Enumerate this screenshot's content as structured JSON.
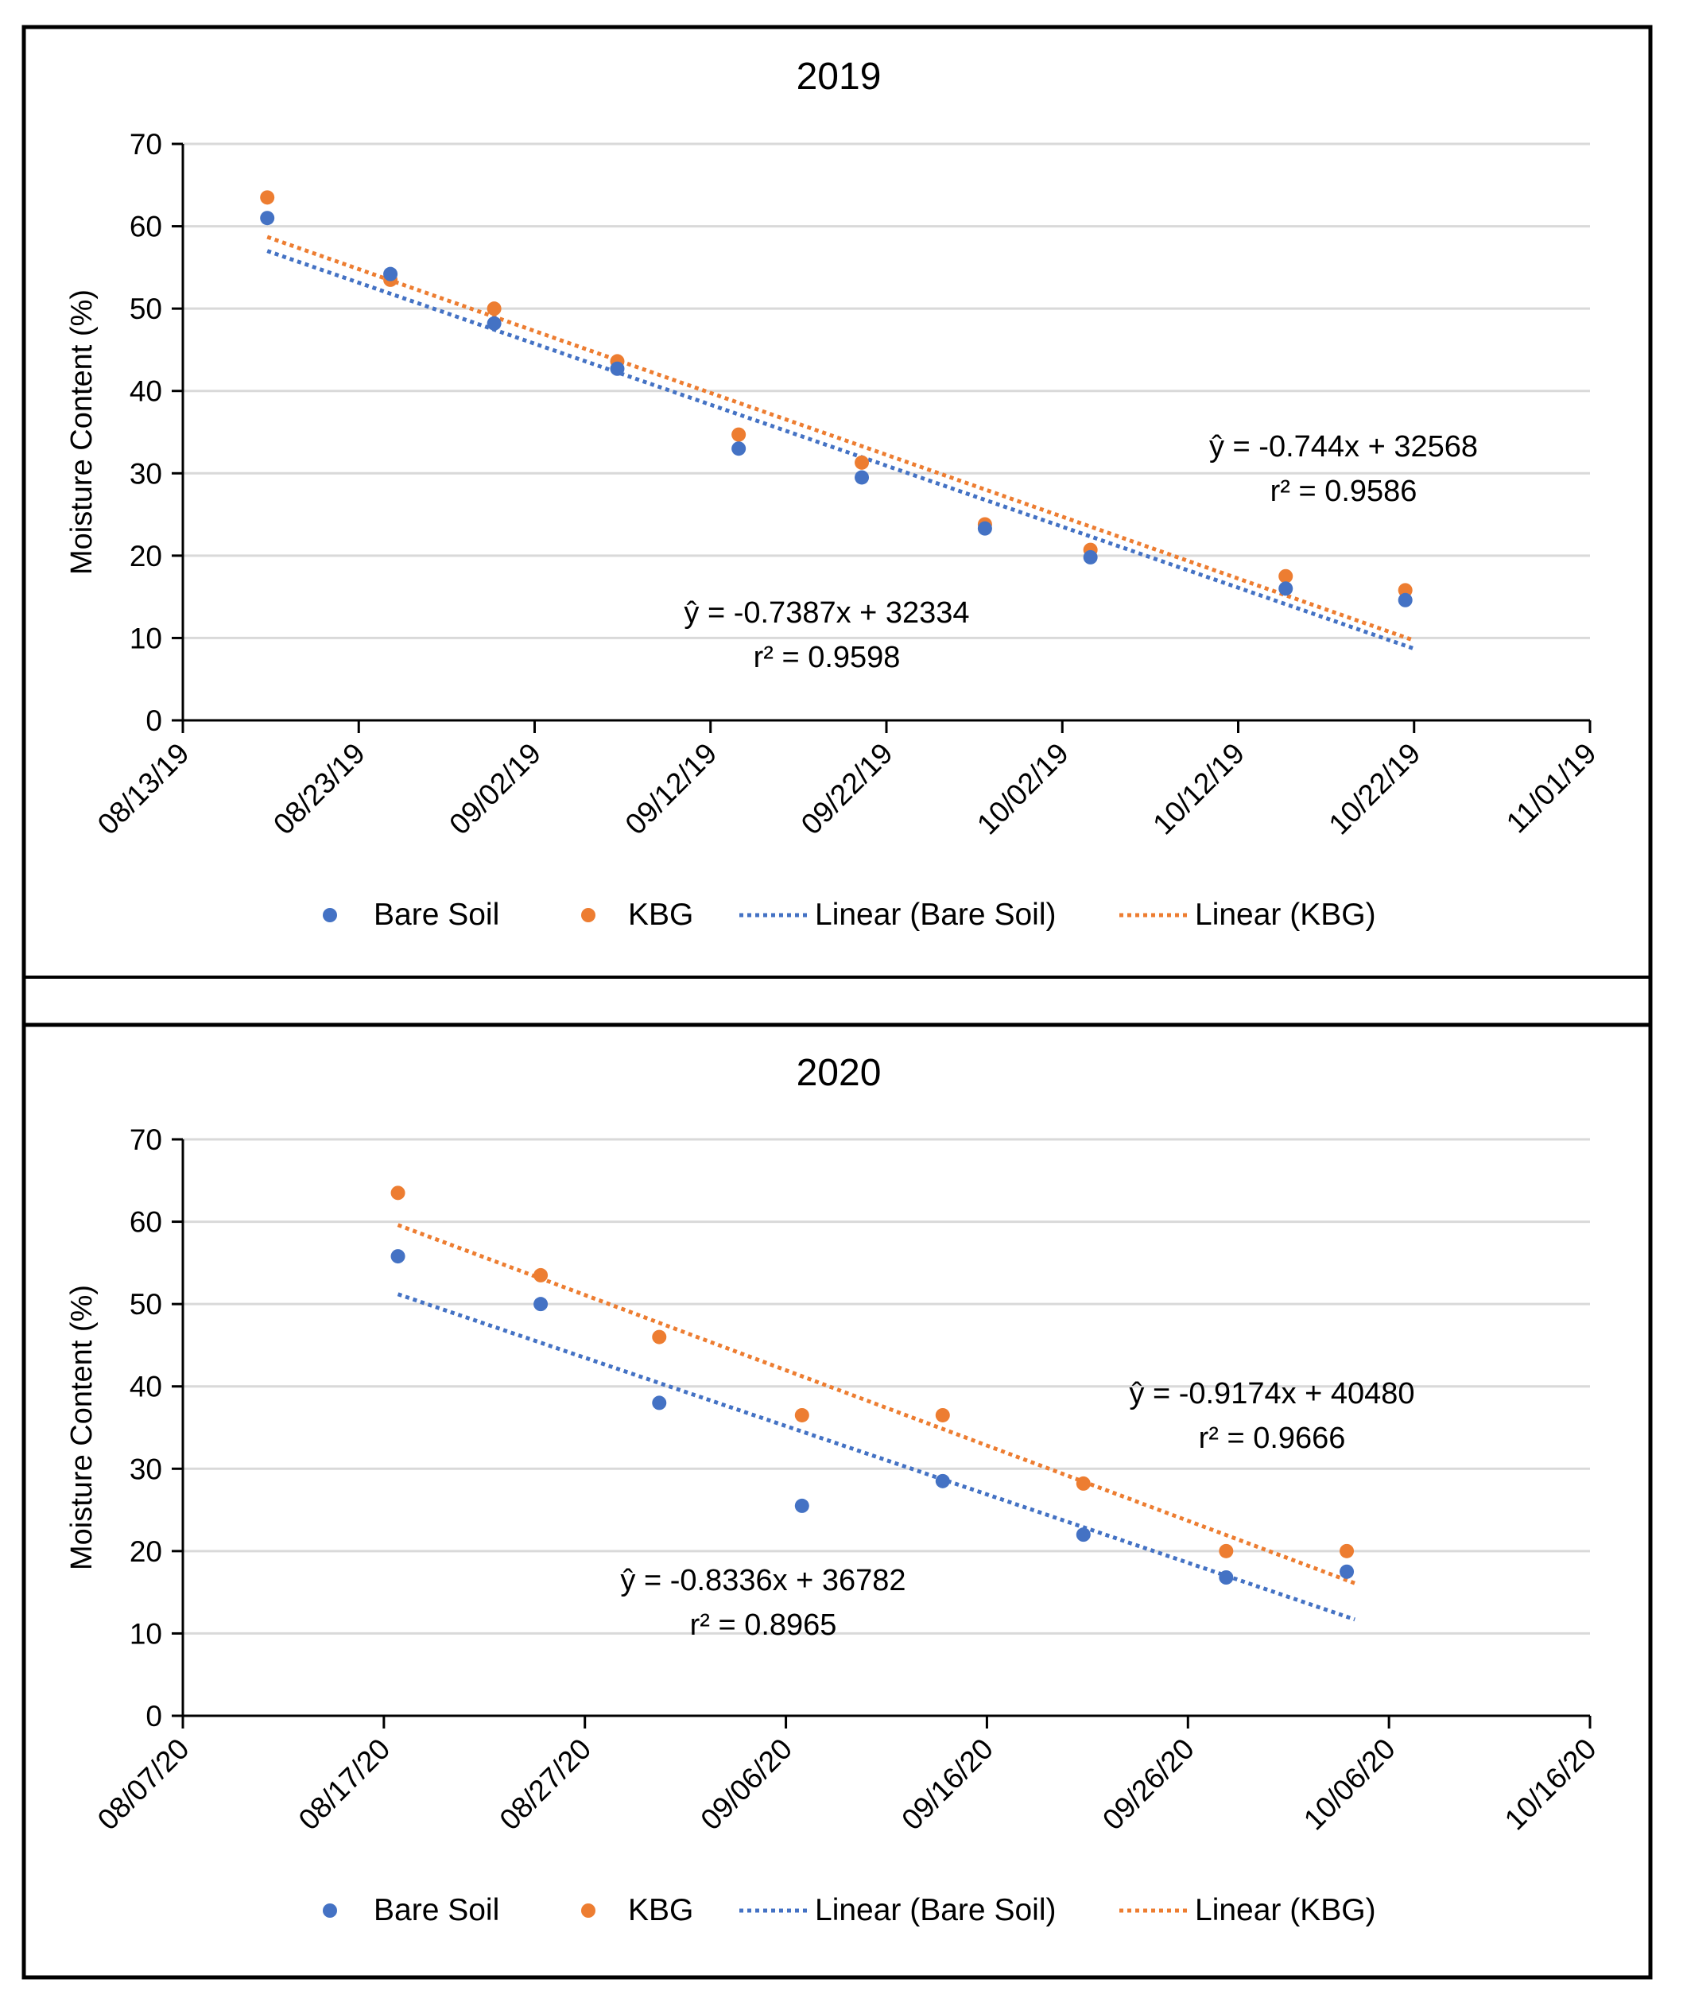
{
  "colors": {
    "bare_soil": "#4472c4",
    "kbg": "#ed7d31",
    "grid": "#d9d9d9",
    "axis": "#000000",
    "frame": "#000000"
  },
  "chart_data": [
    {
      "type": "scatter",
      "title": "2019",
      "xlabel": "",
      "ylabel": "Moisture Content (%)",
      "ylim": [
        0,
        70
      ],
      "y_ticks": [
        "0",
        "10",
        "20",
        "30",
        "40",
        "50",
        "60",
        "70"
      ],
      "x_tick_labels": [
        "08/13/19",
        "08/23/19",
        "09/02/19",
        "09/12/19",
        "09/22/19",
        "10/02/19",
        "10/12/19",
        "10/22/19",
        "11/01/19"
      ],
      "xlim_days": [
        0,
        80
      ],
      "grid": true,
      "legend": {
        "position": "bottom",
        "entries": [
          "Bare Soil",
          "KBG",
          "Linear (Bare Soil)",
          "Linear (KBG)"
        ]
      },
      "series": [
        {
          "name": "Bare Soil",
          "x_days": [
            4.8,
            11.8,
            17.7,
            24.7,
            31.6,
            38.6,
            45.6,
            51.6,
            62.7,
            69.5
          ],
          "values": [
            61.0,
            54.2,
            48.2,
            42.7,
            33.0,
            29.5,
            23.3,
            19.8,
            16.0,
            14.6
          ]
        },
        {
          "name": "KBG",
          "x_days": [
            4.8,
            11.8,
            17.7,
            24.7,
            31.6,
            38.6,
            45.6,
            51.6,
            62.7,
            69.5
          ],
          "values": [
            63.5,
            53.5,
            50.0,
            43.6,
            34.7,
            31.3,
            23.8,
            20.7,
            17.5,
            15.8
          ]
        }
      ],
      "trendlines": [
        {
          "name": "Linear (Bare Soil)",
          "x_days": [
            4.8,
            70.0
          ],
          "values": [
            57.0,
            8.7
          ]
        },
        {
          "name": "Linear (KBG)",
          "x_days": [
            4.8,
            70.0
          ],
          "values": [
            58.7,
            9.7
          ]
        }
      ],
      "annotations": [
        {
          "series": "KBG",
          "equation": "ŷ  = -0.744x + 32568",
          "r2": "r² = 0.9586"
        },
        {
          "series": "Bare Soil",
          "equation": "ŷ = -0.7387x + 32334",
          "r2": "r² = 0.9598"
        }
      ]
    },
    {
      "type": "scatter",
      "title": "2020",
      "xlabel": "",
      "ylabel": "Moisture Content (%)",
      "ylim": [
        0,
        70
      ],
      "y_ticks": [
        "0",
        "10",
        "20",
        "30",
        "40",
        "50",
        "60",
        "70"
      ],
      "x_tick_labels": [
        "08/07/20",
        "08/17/20",
        "08/27/20",
        "09/06/20",
        "09/16/20",
        "09/26/20",
        "10/06/20",
        "10/16/20"
      ],
      "xlim_days": [
        0,
        70
      ],
      "grid": true,
      "legend": {
        "position": "bottom",
        "entries": [
          "Bare Soil",
          "KBG",
          "Linear (Bare Soil)",
          "Linear (KBG)"
        ]
      },
      "series": [
        {
          "name": "Bare Soil",
          "x_days": [
            10.7,
            17.8,
            23.7,
            30.8,
            37.8,
            44.8,
            51.9,
            57.9
          ],
          "values": [
            55.8,
            50.0,
            38.0,
            25.5,
            28.5,
            22.0,
            16.8,
            17.5
          ]
        },
        {
          "name": "KBG",
          "x_days": [
            10.7,
            17.8,
            23.7,
            30.8,
            37.8,
            44.8,
            51.9,
            57.9
          ],
          "values": [
            63.5,
            53.5,
            46.0,
            36.5,
            36.5,
            28.2,
            20.0,
            20.0
          ]
        }
      ],
      "trendlines": [
        {
          "name": "Linear (Bare Soil)",
          "x_days": [
            10.7,
            58.3
          ],
          "values": [
            51.2,
            11.7
          ]
        },
        {
          "name": "Linear (KBG)",
          "x_days": [
            10.7,
            58.3
          ],
          "values": [
            59.6,
            16.1
          ]
        }
      ],
      "annotations": [
        {
          "series": "KBG",
          "equation": "ŷ = -0.9174x + 40480",
          "r2": "r² = 0.9666"
        },
        {
          "series": "Bare Soil",
          "equation": "ŷ = -0.8336x + 36782",
          "r2": "r² = 0.8965"
        }
      ]
    }
  ]
}
